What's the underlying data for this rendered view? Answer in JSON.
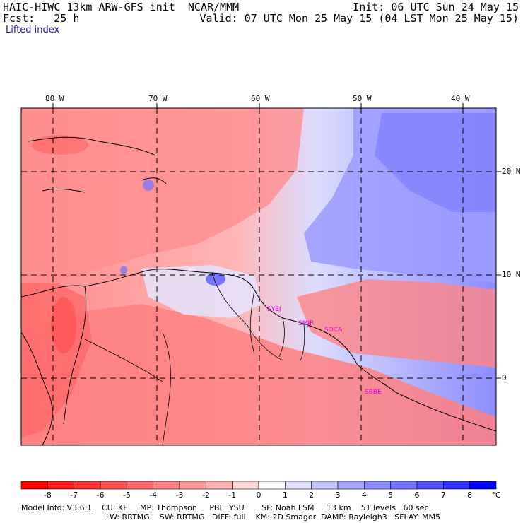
{
  "header": {
    "title_left": "HAIC-HIWC 13km ARW-GFS init  NCAR/MMM",
    "fcst": "Fcst:   25 h",
    "init": "Init: 06 UTC Sun 24 May 15",
    "valid": "Valid: 07 UTC Mon 25 May 15 (04 LST Mon 25 May 15)",
    "field": "Lifted index"
  },
  "map": {
    "lon_labels": [
      "80 W",
      "70 W",
      "60 W",
      "50 W",
      "40 W"
    ],
    "lat_labels": [
      "20 N",
      "10 N",
      "0"
    ],
    "stations": [
      "SYEJ",
      "SMJP",
      "SOCA",
      "SBBE"
    ]
  },
  "colorbar": {
    "labels": [
      "-8",
      "-7",
      "-6",
      "-5",
      "-4",
      "-3",
      "-2",
      "-1",
      "0",
      "1",
      "2",
      "3",
      "4",
      "5",
      "6",
      "7",
      "8"
    ],
    "unit": "°C",
    "colors": [
      "#ff0000",
      "#ff1c1c",
      "#ff3333",
      "#ff4d4d",
      "#ff6666",
      "#ff8080",
      "#ff9999",
      "#ffb3b3",
      "#ffd9d9",
      "#ffffff",
      "#e0e0ff",
      "#c6c6ff",
      "#a8a8ff",
      "#8c8cff",
      "#7070ff",
      "#5050ff",
      "#3030ff",
      "#0000ff"
    ]
  },
  "model_info": {
    "line1": "Model Info: V3.6.1    CU: KF     MP: Thompson     PBL: YSU       SF: Noah LSM     13 km    51 levels   60 sec",
    "line2": "LW: RRTMG    SW: RRTMG   DIFF: full    KM: 2D Smagor  DAMP: Rayleigh3   SFLAY: MM5"
  }
}
